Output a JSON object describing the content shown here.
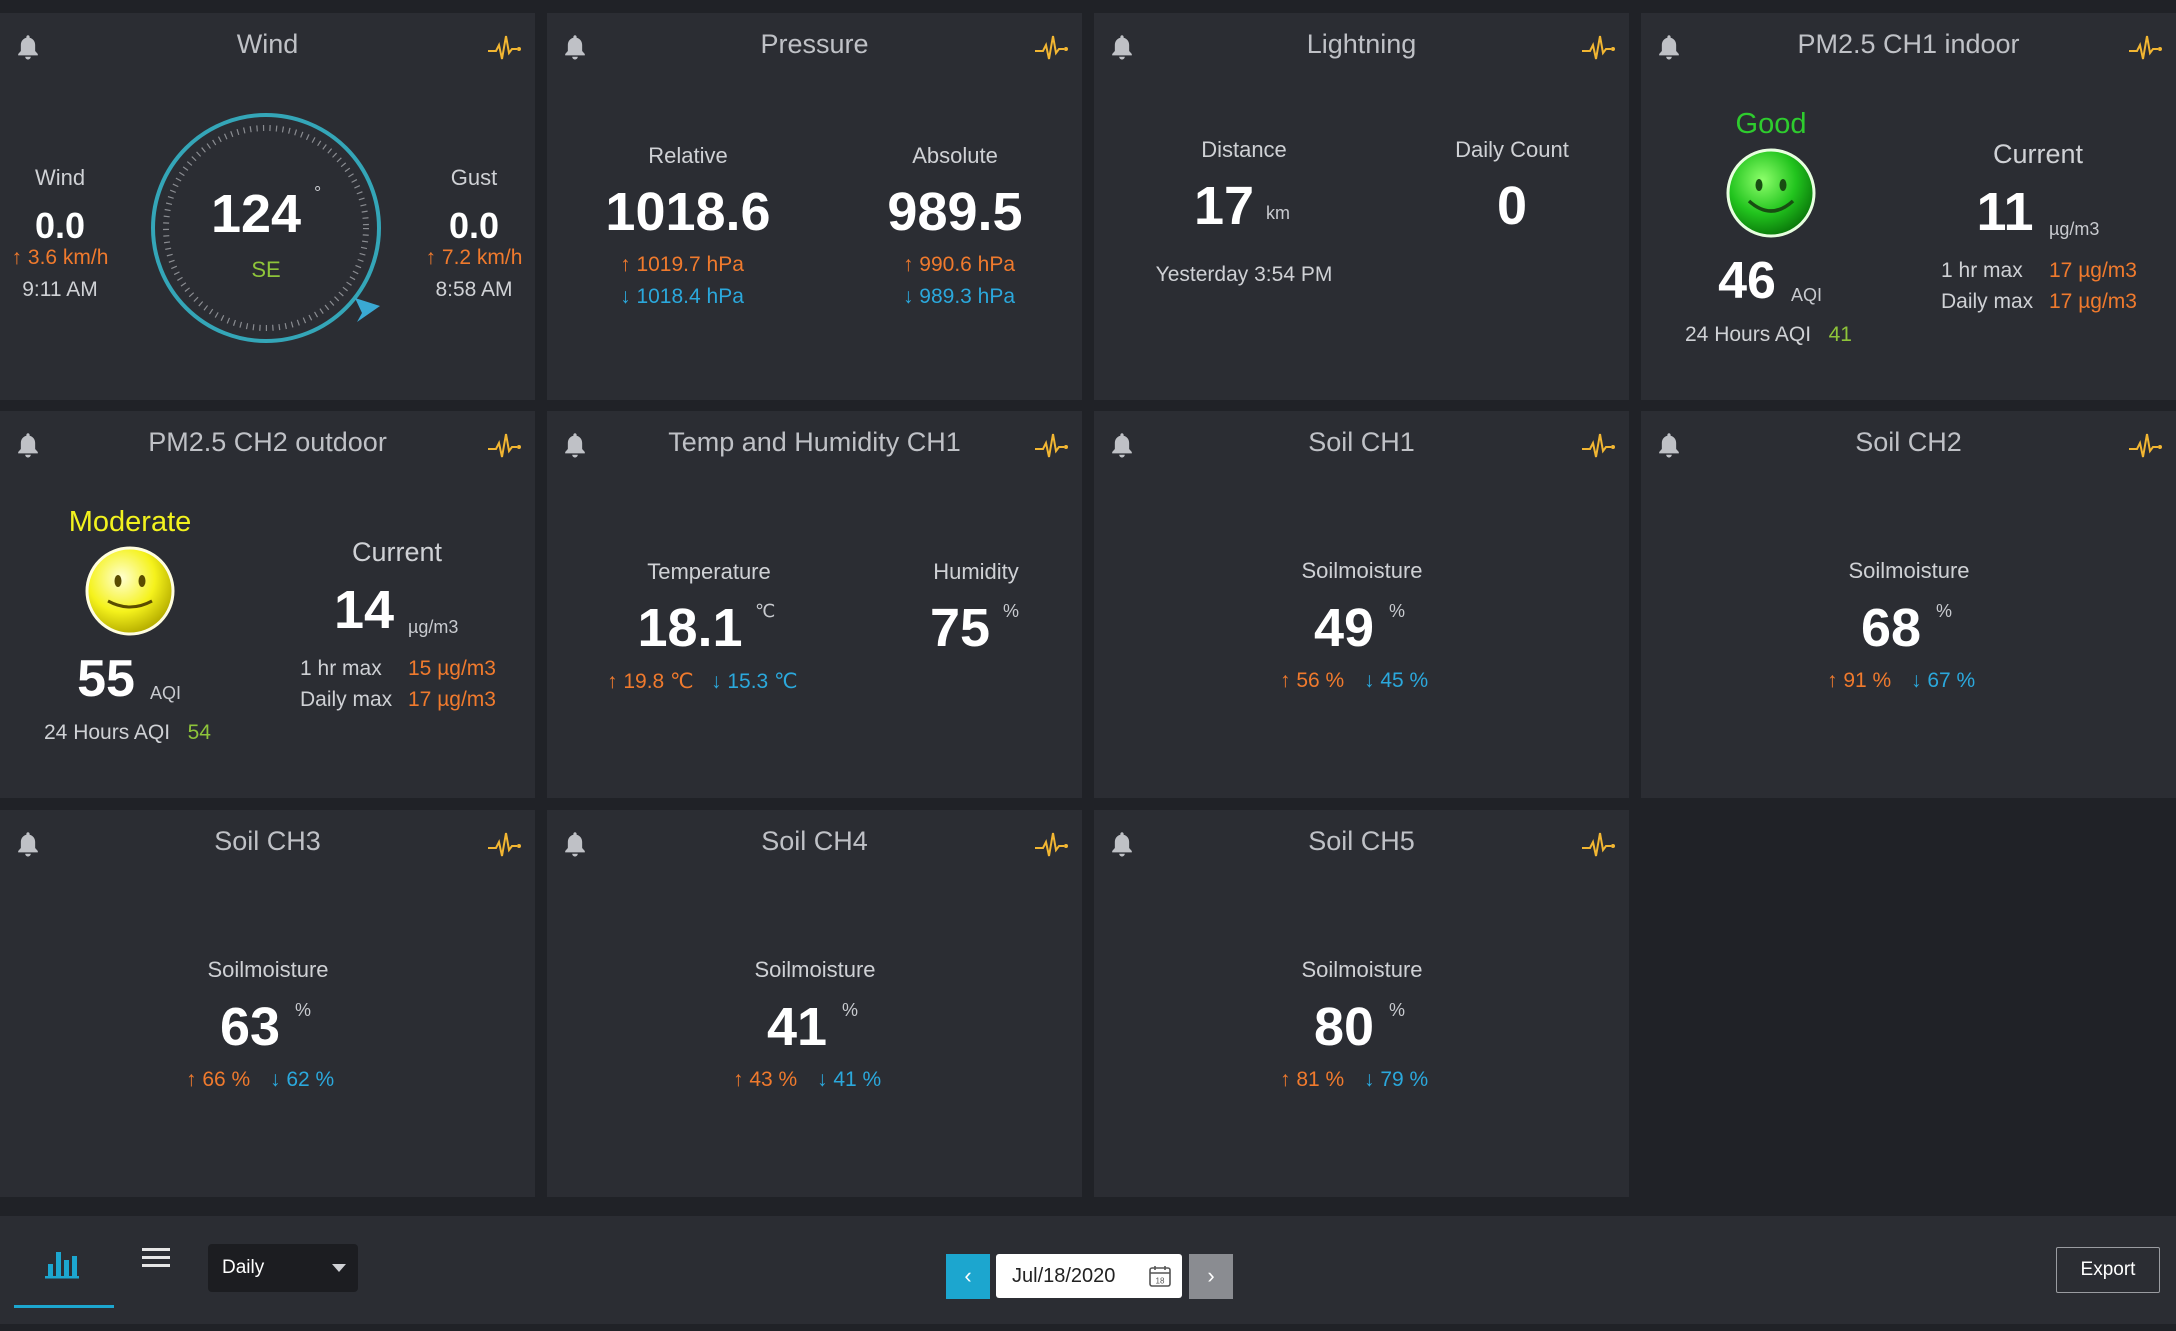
{
  "colors": {
    "bg": "#202227",
    "card": "#2b2d33",
    "hi": "#f07a2d",
    "lo": "#2ba8dc",
    "accent": "#1ca6cf",
    "pulse": "#f2b632",
    "good": "#2ecc2e",
    "moderate": "#f2f21e"
  },
  "wind": {
    "title": "Wind",
    "wind_label": "Wind",
    "wind_value": "0.0",
    "wind_max": "3.6 km/h",
    "wind_time": "9:11 AM",
    "gust_label": "Gust",
    "gust_value": "0.0",
    "gust_max": "7.2 km/h",
    "gust_time": "8:58 AM",
    "direction_value": "124",
    "direction_unit": "°",
    "direction_label": "SE"
  },
  "pressure": {
    "title": "Pressure",
    "relative_label": "Relative",
    "relative_value": "1018.6",
    "relative_max": "1019.7 hPa",
    "relative_min": "1018.4 hPa",
    "absolute_label": "Absolute",
    "absolute_value": "989.5",
    "absolute_max": "990.6 hPa",
    "absolute_min": "989.3 hPa"
  },
  "lightning": {
    "title": "Lightning",
    "distance_label": "Distance",
    "distance_value": "17",
    "distance_unit": "km",
    "last_strike": "Yesterday 3:54 PM",
    "count_label": "Daily Count",
    "count_value": "0"
  },
  "pm25_ch1": {
    "title": "PM2.5 CH1 indoor",
    "status": "Good",
    "aqi_value": "46",
    "aqi_unit": "AQI",
    "aqi24_label": "24 Hours AQI",
    "aqi24_value": "41",
    "current_label": "Current",
    "current_value": "11",
    "current_unit": "µg/m3",
    "hr_max_label": "1 hr max",
    "hr_max_value": "17 µg/m3",
    "daily_max_label": "Daily max",
    "daily_max_value": "17 µg/m3"
  },
  "pm25_ch2": {
    "title": "PM2.5 CH2 outdoor",
    "status": "Moderate",
    "aqi_value": "55",
    "aqi_unit": "AQI",
    "aqi24_label": "24 Hours AQI",
    "aqi24_value": "54",
    "current_label": "Current",
    "current_value": "14",
    "current_unit": "µg/m3",
    "hr_max_label": "1 hr max",
    "hr_max_value": "15 µg/m3",
    "daily_max_label": "Daily max",
    "daily_max_value": "17 µg/m3"
  },
  "temp_hum": {
    "title": "Temp and Humidity CH1",
    "temp_label": "Temperature",
    "temp_value": "18.1",
    "temp_unit": "℃",
    "temp_max": "19.8 ℃",
    "temp_min": "15.3 ℃",
    "hum_label": "Humidity",
    "hum_value": "75",
    "hum_unit": "%"
  },
  "soil": [
    {
      "title": "Soil CH1",
      "label": "Soilmoisture",
      "value": "49",
      "unit": "%",
      "max": "56 %",
      "min": "45 %"
    },
    {
      "title": "Soil CH2",
      "label": "Soilmoisture",
      "value": "68",
      "unit": "%",
      "max": "91 %",
      "min": "67 %"
    },
    {
      "title": "Soil CH3",
      "label": "Soilmoisture",
      "value": "63",
      "unit": "%",
      "max": "66 %",
      "min": "62 %"
    },
    {
      "title": "Soil CH4",
      "label": "Soilmoisture",
      "value": "41",
      "unit": "%",
      "max": "43 %",
      "min": "41 %"
    },
    {
      "title": "Soil CH5",
      "label": "Soilmoisture",
      "value": "80",
      "unit": "%",
      "max": "81 %",
      "min": "79 %"
    }
  ],
  "toolbar": {
    "period": "Daily",
    "prev": "‹",
    "next": "›",
    "date": "Jul/18/2020",
    "cal_day": "18",
    "export": "Export"
  },
  "icons": [
    "bell-icon",
    "pulse-icon",
    "bar-chart-icon",
    "list-icon",
    "calendar-icon",
    "chevron-left-icon",
    "chevron-right-icon",
    "caret-down-icon"
  ]
}
